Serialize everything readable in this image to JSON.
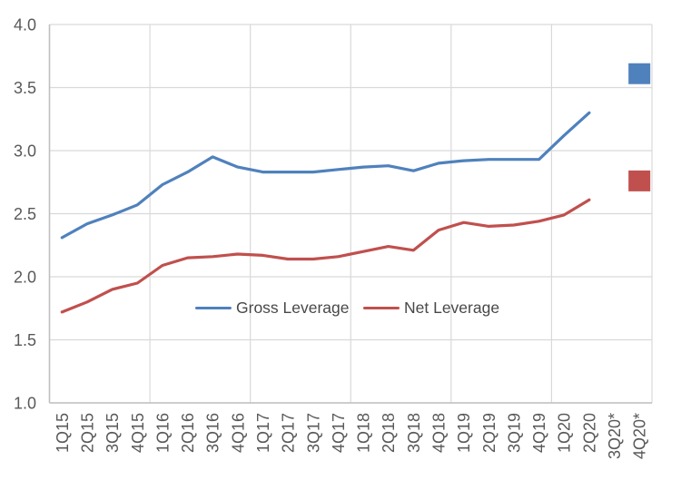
{
  "chart_data": {
    "type": "line",
    "title": "",
    "xlabel": "",
    "ylabel": "",
    "categories": [
      "1Q15",
      "2Q15",
      "3Q15",
      "4Q15",
      "1Q16",
      "2Q16",
      "3Q16",
      "4Q16",
      "1Q17",
      "2Q17",
      "3Q17",
      "4Q17",
      "1Q18",
      "2Q18",
      "3Q18",
      "4Q18",
      "1Q19",
      "2Q19",
      "3Q19",
      "4Q19",
      "1Q20",
      "2Q20",
      "3Q20*",
      "4Q20*"
    ],
    "yticks": [
      "1.0",
      "1.5",
      "2.0",
      "2.5",
      "3.0",
      "3.5",
      "4.0"
    ],
    "ylim": [
      1.0,
      4.0
    ],
    "grid": "on",
    "vertical_gridline_every_n_categories": 4,
    "legend_position": "inside-lower-middle",
    "series": [
      {
        "name": "Gross Leverage",
        "color": "#4F81BD",
        "values": [
          2.31,
          2.42,
          2.49,
          2.57,
          2.73,
          2.83,
          2.95,
          2.87,
          2.83,
          2.83,
          2.83,
          2.85,
          2.87,
          2.88,
          2.84,
          2.9,
          2.92,
          2.93,
          2.93,
          2.93,
          3.12,
          3.3
        ],
        "forecast_marker": {
          "category": "4Q20*",
          "value": 3.61,
          "shape": "square"
        }
      },
      {
        "name": "Net Leverage",
        "color": "#C0504D",
        "values": [
          1.72,
          1.8,
          1.9,
          1.95,
          2.09,
          2.15,
          2.16,
          2.18,
          2.17,
          2.14,
          2.14,
          2.16,
          2.2,
          2.24,
          2.21,
          2.37,
          2.43,
          2.4,
          2.41,
          2.44,
          2.49,
          2.61
        ],
        "forecast_marker": {
          "category": "4Q20*",
          "value": 2.76,
          "shape": "square"
        }
      }
    ],
    "colors": {
      "gridline": "#D9D9D9",
      "axis_line": "#BFBFBF",
      "tick_text": "#595959",
      "legend_text": "#484848",
      "background": "#FFFFFF"
    }
  }
}
